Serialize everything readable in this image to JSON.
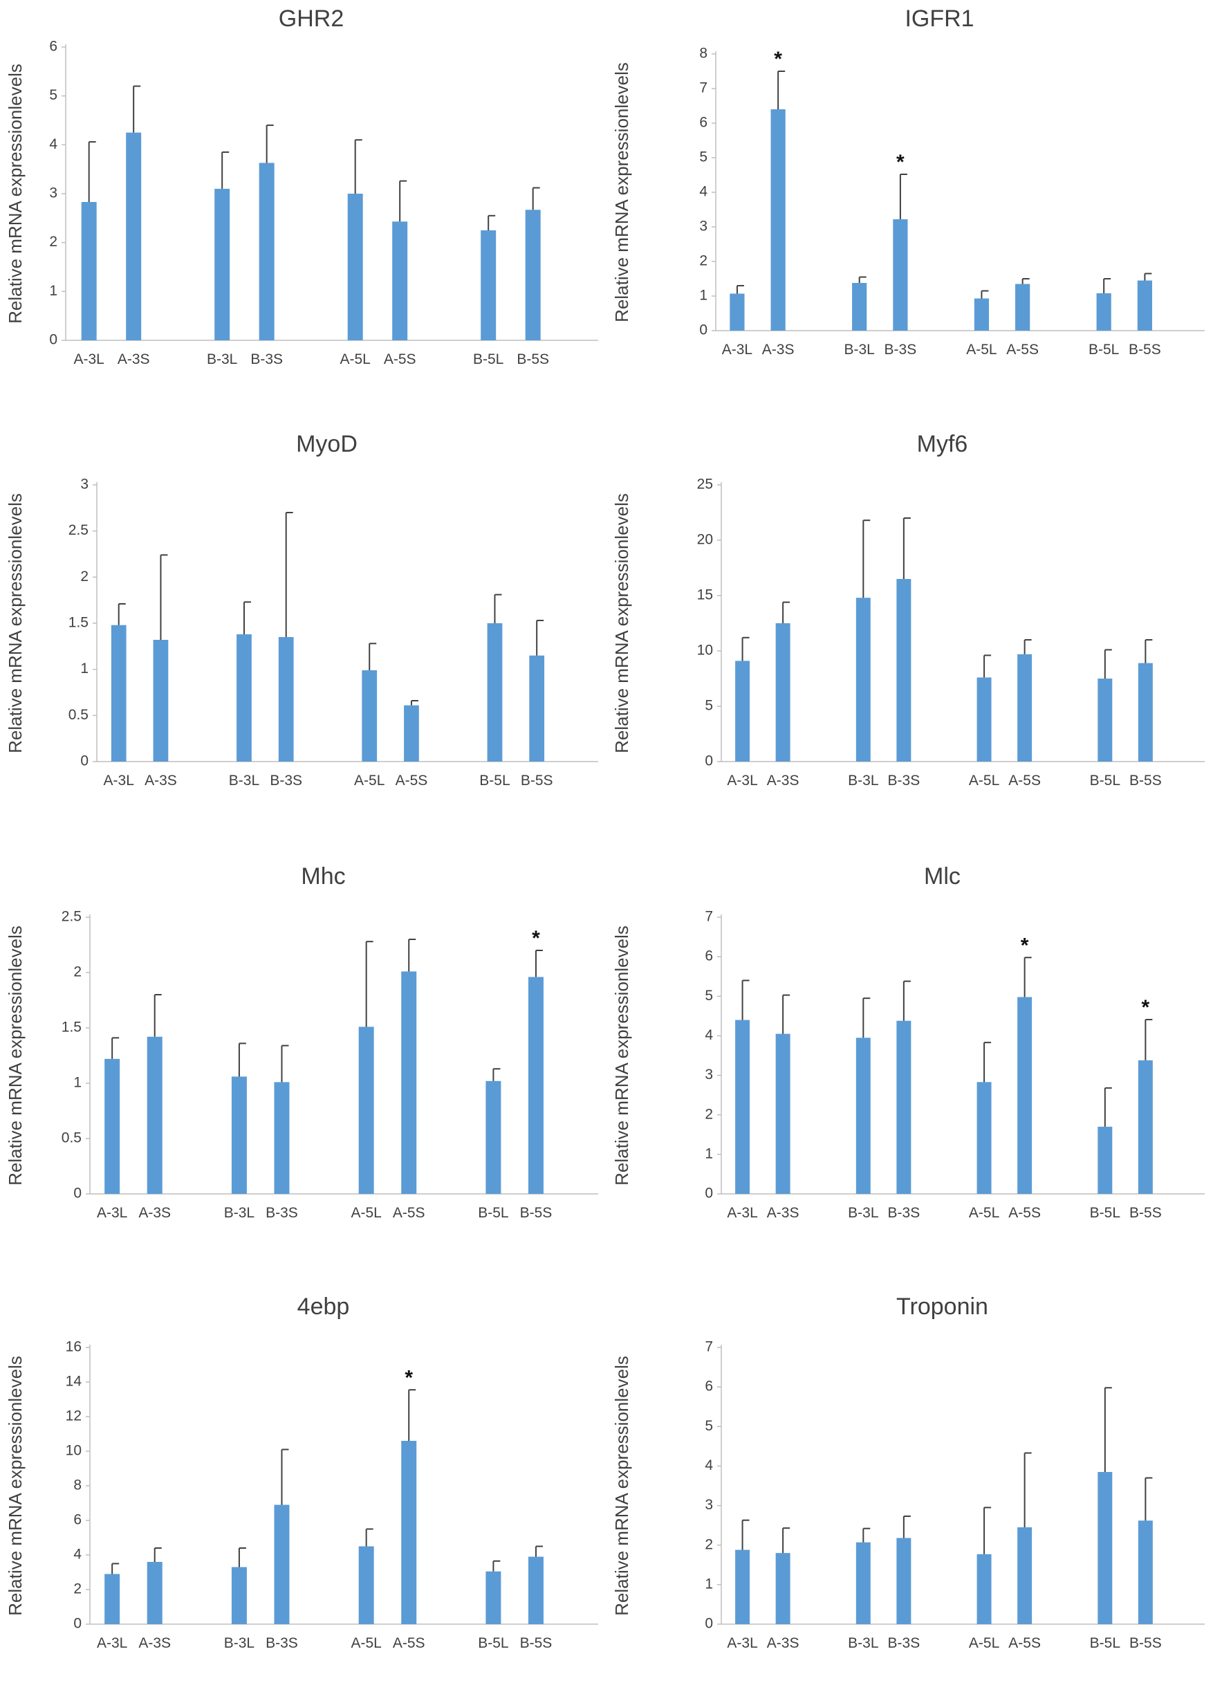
{
  "chart_data": [
    {
      "type": "bar",
      "title": "GHR2",
      "ylabel": "Relative mRNA  expressionlevels",
      "categories": [
        "A-3L",
        "A-3S",
        "B-3L",
        "B-3S",
        "A-5L",
        "A-5S",
        "B-5L",
        "B-5S"
      ],
      "values": [
        2.83,
        4.25,
        3.1,
        3.63,
        3.0,
        2.43,
        2.25,
        2.67
      ],
      "errors": [
        1.23,
        0.95,
        0.75,
        0.77,
        1.1,
        0.83,
        0.3,
        0.45
      ],
      "significant": [
        false,
        false,
        false,
        false,
        false,
        false,
        false,
        false
      ],
      "ylim": [
        0,
        6
      ],
      "yticks": [
        "0",
        "1",
        "2",
        "3",
        "4",
        "5",
        "6"
      ],
      "bar_color": "#5b9bd5"
    },
    {
      "type": "bar",
      "title": "IGFR1",
      "ylabel": "Relative mRNA  expressionlevels",
      "categories": [
        "A-3L",
        "A-3S",
        "B-3L",
        "B-3S",
        "A-5L",
        "A-5S",
        "B-5L",
        "B-5S"
      ],
      "values": [
        1.07,
        6.4,
        1.38,
        3.22,
        0.93,
        1.35,
        1.08,
        1.45
      ],
      "errors": [
        0.23,
        1.1,
        0.17,
        1.3,
        0.22,
        0.15,
        0.42,
        0.2
      ],
      "significant": [
        false,
        true,
        false,
        true,
        false,
        false,
        false,
        false
      ],
      "ylim": [
        0,
        8
      ],
      "yticks": [
        "0",
        "1",
        "2",
        "3",
        "4",
        "5",
        "6",
        "7",
        "8"
      ],
      "bar_color": "#5b9bd5"
    },
    {
      "type": "bar",
      "title": "MyoD",
      "ylabel": "Relative mRNA  expressionlevels",
      "categories": [
        "A-3L",
        "A-3S",
        "B-3L",
        "B-3S",
        "A-5L",
        "A-5S",
        "B-5L",
        "B-5S"
      ],
      "values": [
        1.48,
        1.32,
        1.38,
        1.35,
        0.99,
        0.61,
        1.5,
        1.15
      ],
      "errors": [
        0.23,
        0.92,
        0.35,
        1.35,
        0.29,
        0.05,
        0.31,
        0.38
      ],
      "significant": [
        false,
        false,
        false,
        false,
        false,
        false,
        false,
        false
      ],
      "ylim": [
        0,
        3
      ],
      "yticks": [
        "0",
        "0.5",
        "1",
        "1.5",
        "2",
        "2.5",
        "3"
      ],
      "bar_color": "#5b9bd5"
    },
    {
      "type": "bar",
      "title": "Myf6",
      "ylabel": "Relative mRNA  expressionlevels",
      "categories": [
        "A-3L",
        "A-3S",
        "B-3L",
        "B-3S",
        "A-5L",
        "A-5S",
        "B-5L",
        "B-5S"
      ],
      "values": [
        9.1,
        12.5,
        14.8,
        16.5,
        7.6,
        9.7,
        7.5,
        8.9
      ],
      "errors": [
        2.1,
        1.9,
        7.0,
        5.5,
        2.0,
        1.3,
        2.6,
        2.1
      ],
      "significant": [
        false,
        false,
        false,
        false,
        false,
        false,
        false,
        false
      ],
      "ylim": [
        0,
        25
      ],
      "yticks": [
        "0",
        "5",
        "10",
        "15",
        "20",
        "25"
      ],
      "bar_color": "#5b9bd5"
    },
    {
      "type": "bar",
      "title": "Mhc",
      "ylabel": "Relative mRNA  expressionlevels",
      "categories": [
        "A-3L",
        "A-3S",
        "B-3L",
        "B-3S",
        "A-5L",
        "A-5S",
        "B-5L",
        "B-5S"
      ],
      "values": [
        1.22,
        1.42,
        1.06,
        1.01,
        1.51,
        2.01,
        1.02,
        1.96
      ],
      "errors": [
        0.19,
        0.38,
        0.3,
        0.33,
        0.77,
        0.29,
        0.11,
        0.24
      ],
      "significant": [
        false,
        false,
        false,
        false,
        false,
        false,
        false,
        true
      ],
      "ylim": [
        0,
        2.5
      ],
      "yticks": [
        "0",
        "0.5",
        "1",
        "1.5",
        "2",
        "2.5"
      ],
      "bar_color": "#5b9bd5"
    },
    {
      "type": "bar",
      "title": "Mlc",
      "ylabel": "Relative mRNA  expressionlevels",
      "categories": [
        "A-3L",
        "A-3S",
        "B-3L",
        "B-3S",
        "A-5L",
        "A-5S",
        "B-5L",
        "B-5S"
      ],
      "values": [
        4.4,
        4.05,
        3.95,
        4.38,
        2.83,
        4.98,
        1.7,
        3.38
      ],
      "errors": [
        1.0,
        0.98,
        1.0,
        1.0,
        1.0,
        1.0,
        0.98,
        1.03
      ],
      "significant": [
        false,
        false,
        false,
        false,
        false,
        true,
        false,
        true
      ],
      "ylim": [
        0,
        7
      ],
      "yticks": [
        "0",
        "1",
        "2",
        "3",
        "4",
        "5",
        "6",
        "7"
      ],
      "bar_color": "#5b9bd5"
    },
    {
      "type": "bar",
      "title": "4ebp",
      "ylabel": "Relative mRNA  expressionlevels",
      "categories": [
        "A-3L",
        "A-3S",
        "B-3L",
        "B-3S",
        "A-5L",
        "A-5S",
        "B-5L",
        "B-5S"
      ],
      "values": [
        2.9,
        3.6,
        3.3,
        6.9,
        4.5,
        10.6,
        3.05,
        3.9
      ],
      "errors": [
        0.6,
        0.8,
        1.1,
        3.2,
        1.0,
        2.95,
        0.6,
        0.6
      ],
      "significant": [
        false,
        false,
        false,
        false,
        false,
        true,
        false,
        false
      ],
      "ylim": [
        0,
        16
      ],
      "yticks": [
        "0",
        "2",
        "4",
        "6",
        "8",
        "10",
        "12",
        "14",
        "16"
      ],
      "bar_color": "#5b9bd5"
    },
    {
      "type": "bar",
      "title": "Troponin",
      "ylabel": "Relative mRNA  expressionlevels",
      "categories": [
        "A-3L",
        "A-3S",
        "B-3L",
        "B-3S",
        "A-5L",
        "A-5S",
        "B-5L",
        "B-5S"
      ],
      "values": [
        1.88,
        1.8,
        2.07,
        2.18,
        1.77,
        2.45,
        3.85,
        2.62
      ],
      "errors": [
        0.75,
        0.63,
        0.35,
        0.55,
        1.18,
        1.88,
        2.13,
        1.08
      ],
      "significant": [
        false,
        false,
        false,
        false,
        false,
        false,
        false,
        false
      ],
      "ylim": [
        0,
        7
      ],
      "yticks": [
        "0",
        "1",
        "2",
        "3",
        "4",
        "5",
        "6",
        "7"
      ],
      "bar_color": "#5b9bd5"
    }
  ]
}
